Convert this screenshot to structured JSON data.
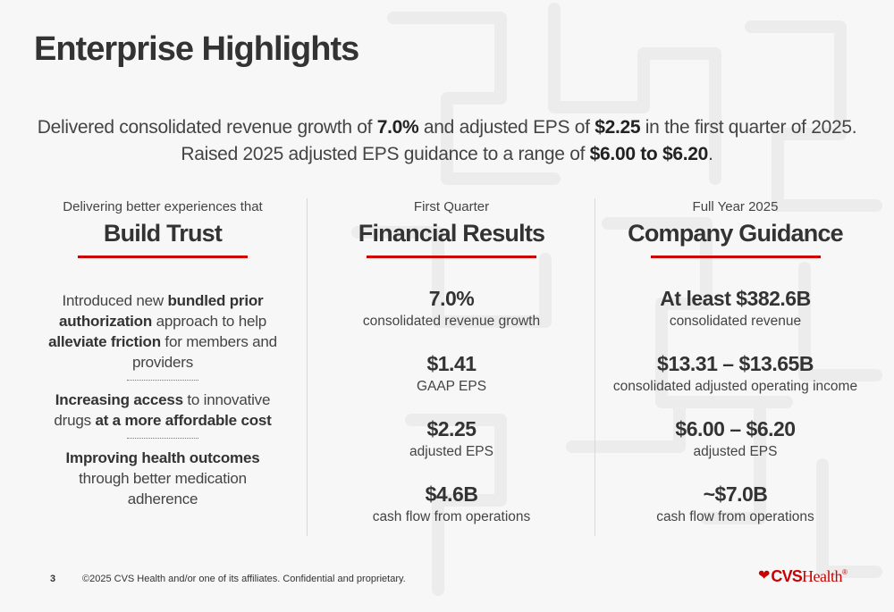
{
  "slide": {
    "title": "Enterprise Highlights",
    "summary": {
      "line1_pre": "Delivered consolidated revenue growth of ",
      "line1_b1": "7.0%",
      "line1_mid": " and adjusted EPS of ",
      "line1_b2": "$2.25",
      "line1_post": " in the first quarter of 2025.",
      "line2_pre": "Raised 2025 adjusted EPS guidance to a range of ",
      "line2_b": "$6.00 to $6.20",
      "line2_post": "."
    }
  },
  "trust": {
    "kicker": "Delivering better experiences that",
    "heading": "Build Trust",
    "item1": {
      "t1": "Introduced new ",
      "b1": "bundled prior authorization",
      "t2": " approach to help ",
      "b2": "alleviate friction",
      "t3": " for members and providers"
    },
    "item2": {
      "b1": "Increasing access",
      "t1": " to innovative drugs ",
      "b2": "at a more affordable cost"
    },
    "item3": {
      "b1": "Improving health outcomes",
      "t1": " through better medication adherence"
    }
  },
  "results": {
    "kicker": "First Quarter",
    "heading": "Financial Results",
    "metrics": [
      {
        "value": "7.0%",
        "label": "consolidated revenue growth"
      },
      {
        "value": "$1.41",
        "label": "GAAP EPS"
      },
      {
        "value": "$2.25",
        "label": "adjusted EPS"
      },
      {
        "value": "$4.6B",
        "label": "cash flow from operations"
      }
    ]
  },
  "guidance": {
    "kicker": "Full Year 2025",
    "heading": "Company Guidance",
    "metrics": [
      {
        "value": "At least $382.6B",
        "label": "consolidated revenue"
      },
      {
        "value": "$13.31 – $13.65B",
        "label": "consolidated adjusted operating income"
      },
      {
        "value": "$6.00 – $6.20",
        "label": "adjusted EPS"
      },
      {
        "value": "~$7.0B",
        "label": "cash flow from operations"
      }
    ]
  },
  "footer": {
    "page_number": "3",
    "copyright": "©2025 CVS Health and/or one of its affiliates. Confidential and proprietary.",
    "logo_cvs": "CVS",
    "logo_health": "Health",
    "logo_mark": "®"
  },
  "colors": {
    "accent": "#cc0000",
    "text": "#333333",
    "background": "#f7f7f7"
  },
  "icons": [
    "heart-icon"
  ]
}
